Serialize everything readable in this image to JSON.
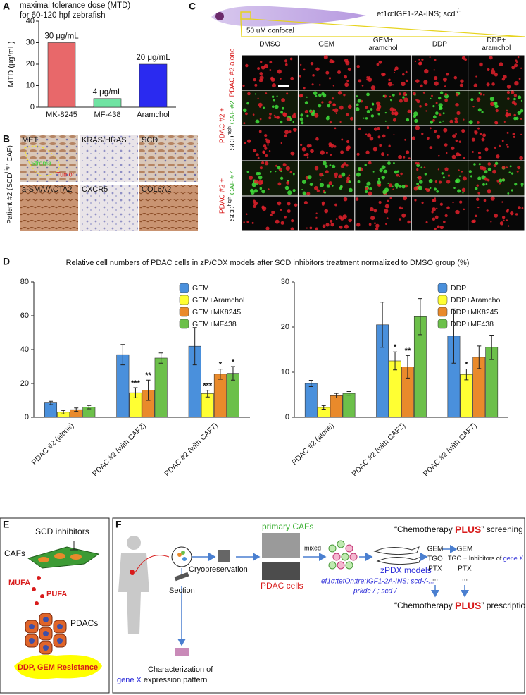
{
  "panel_labels": [
    "A",
    "B",
    "C",
    "D",
    "E",
    "F"
  ],
  "chart_data": [
    {
      "type": "bar",
      "title": [
        "maximal tolerance dose (MTD)",
        "for 60-120 hpf zebrafish"
      ],
      "y_label": "MTD (μg/mL)",
      "categories": [
        "MK-8245",
        "MF-438",
        "Aramchol"
      ],
      "values": [
        30,
        4,
        20
      ],
      "value_labels": [
        "30 μg/mL",
        "4 μg/mL",
        "20 μg/mL"
      ],
      "colors": [
        "#e8686a",
        "#6fe3a2",
        "#2a2af0"
      ],
      "ylim": [
        0,
        40
      ],
      "yticks": [
        0,
        10,
        20,
        30,
        40
      ]
    },
    {
      "type": "grouped_bar",
      "title": "Relative cell numbers of PDAC cells in zP/CDX models after SCD inhibitors treatment normalized to DMSO group (%)",
      "categories": [
        "PDAC #2 (alone)",
        "PDAC #2 (with CAF2)",
        "PDAC #2 (with CAF7)"
      ],
      "series": [
        {
          "name": "GEM",
          "color": "#4a90dc",
          "values": [
            8.5,
            37,
            42
          ],
          "errors": [
            1,
            6,
            11
          ],
          "significance": [
            null,
            null,
            null
          ]
        },
        {
          "name": "GEM+Aramchol",
          "color": "#ffff33",
          "values": [
            3,
            14.5,
            14
          ],
          "errors": [
            1,
            3,
            2
          ],
          "significance": [
            null,
            "***",
            "***"
          ]
        },
        {
          "name": "GEM+MK8245",
          "color": "#e98a2b",
          "values": [
            4.5,
            16,
            25.5
          ],
          "errors": [
            1,
            6,
            3
          ],
          "significance": [
            null,
            "**",
            "*"
          ]
        },
        {
          "name": "GEM+MF438",
          "color": "#6cc04a",
          "values": [
            6,
            35,
            26
          ],
          "errors": [
            1,
            3,
            4
          ],
          "significance": [
            null,
            null,
            "*"
          ]
        }
      ],
      "ylim": [
        0,
        80
      ],
      "yticks": [
        0,
        20,
        40,
        60,
        80
      ],
      "legend": "upper right"
    },
    {
      "type": "grouped_bar",
      "categories": [
        "PDAC #2 (alone)",
        "PDAC #2 (with CAF2)",
        "PDAC #2 (with CAF7)"
      ],
      "series": [
        {
          "name": "DDP",
          "color": "#4a90dc",
          "values": [
            7.5,
            20.5,
            18
          ],
          "errors": [
            0.7,
            5,
            6
          ],
          "significance": [
            null,
            null,
            null
          ]
        },
        {
          "name": "DDP+Aramchol",
          "color": "#ffff33",
          "values": [
            2.2,
            12.5,
            9.5
          ],
          "errors": [
            0.4,
            2,
            1.2
          ],
          "significance": [
            null,
            "*",
            "*"
          ]
        },
        {
          "name": "DDP+MK8245",
          "color": "#e98a2b",
          "values": [
            4.8,
            11.2,
            13.3
          ],
          "errors": [
            0.5,
            2.5,
            2.5
          ],
          "significance": [
            null,
            "**",
            null
          ]
        },
        {
          "name": "DDP+MF438",
          "color": "#6cc04a",
          "values": [
            5.3,
            22.3,
            15.5
          ],
          "errors": [
            0.4,
            4,
            2.7
          ],
          "significance": [
            null,
            null,
            null
          ]
        }
      ],
      "ylim": [
        0,
        30
      ],
      "yticks": [
        0,
        10,
        20,
        30
      ],
      "legend": "upper right"
    }
  ],
  "panel_b": {
    "stains": [
      "MET",
      "KRAS/HRAS",
      "SCD",
      "a-SMA/ACTA2",
      "CXCR5",
      "COL6A2"
    ],
    "row_label": [
      "Patient #2 (SCD",
      "high",
      " CAF)"
    ],
    "annotations": [
      "Tumor",
      "Stroma"
    ]
  },
  "panel_c": {
    "model": [
      "ef1α:IGF1-2A-INS; scd",
      "-/-"
    ],
    "confocal": "50 uM confocal",
    "columns": [
      [
        "DMSO"
      ],
      [
        "GEM"
      ],
      [
        "GEM+",
        "aramchol"
      ],
      [
        "DDP"
      ],
      [
        "DDP+",
        "aramchol"
      ]
    ],
    "rows": [
      {
        "pdac": "PDAC #2 alone"
      },
      {
        "pdac": "PDAC #2 +",
        "scd": "SCD",
        "sup": "high",
        "caf": " CAF #2"
      },
      {
        "pdac": "PDAC #2 +",
        "scd": "SCD",
        "sup": "high",
        "caf": " CAF #7"
      }
    ]
  },
  "panel_e": {
    "inhibitors": "SCD inhibitors",
    "cafs": "CAFs",
    "mufa": "MUFA",
    "pufa": "PUFA",
    "pdacs": "PDACs",
    "resistance": "DDP, GEM Resistance"
  },
  "panel_f": {
    "primary_cafs": "primary CAFs",
    "cryo": "Cryopreservation",
    "mixed": "mixed",
    "pdac_cells": "PDAC cells",
    "section": "Section",
    "characterization": "Characterization of",
    "gene_x": "gene X",
    "expression": " expression pattern",
    "zpdx": "zPDX models",
    "genotype1": "ef1α:tetOn;tre:IGF1-2A-INS; scd-/-...",
    "genotype2": "prkdc-/-; scd-/-",
    "drugs": [
      "GEM",
      "TGO",
      "PTX"
    ],
    "drugs2": [
      "GEM",
      "TGO + Inhibitors of ",
      "gene X",
      "PTX",
      "..."
    ],
    "dots": "...",
    "screening": [
      "“Chemotherapy ",
      "PLUS",
      "” screening"
    ],
    "prescriptions": [
      "“Chemotherapy ",
      "PLUS",
      "” prescriptions"
    ]
  }
}
